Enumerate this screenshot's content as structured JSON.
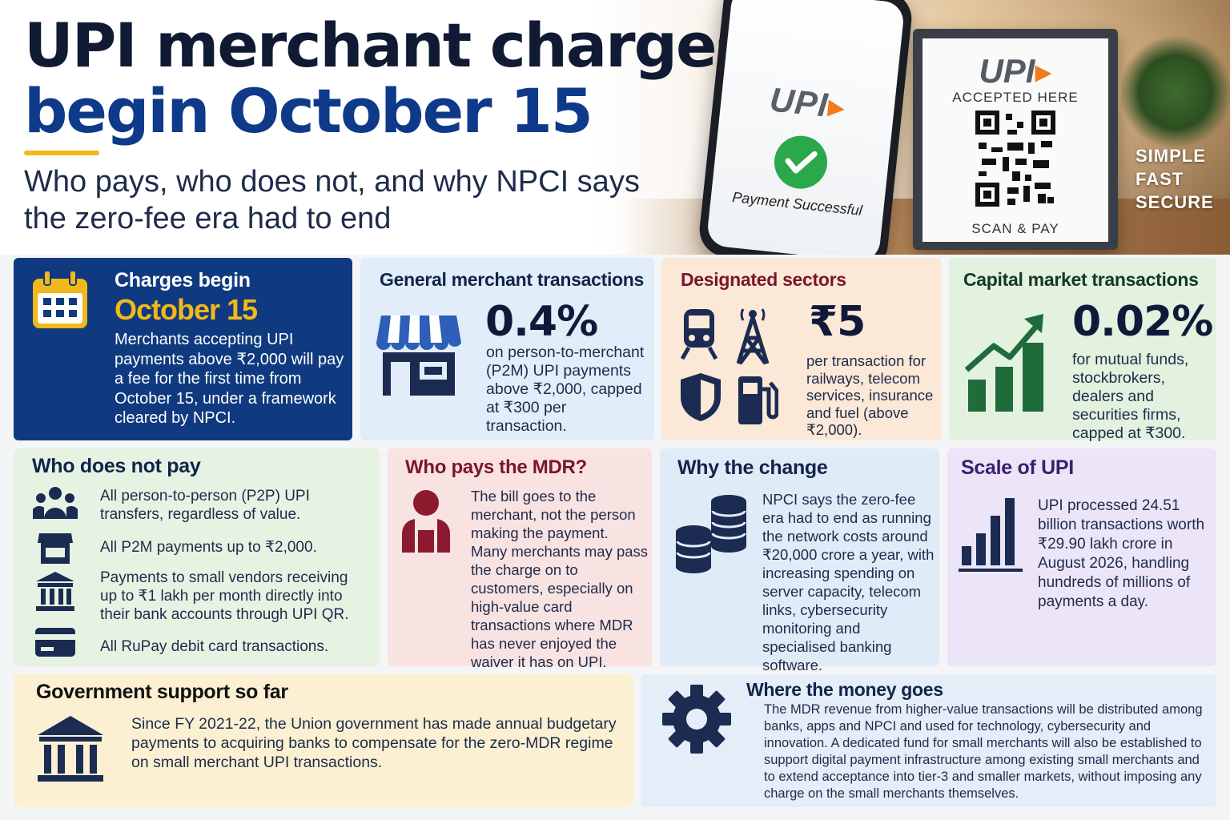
{
  "header": {
    "title_line1": "UPI merchant charges",
    "title_line2": "begin October 15",
    "subtitle": "Who pays, who does not, and why NPCI says the zero-fee era had to end"
  },
  "hero": {
    "phone_brand": "UPI",
    "phone_status": "Payment Successful",
    "stand_brand": "UPI",
    "stand_accepted": "ACCEPTED HERE",
    "stand_scan": "SCAN & PAY",
    "slogan": [
      "SIMPLE",
      "FAST",
      "SECURE"
    ]
  },
  "charges_begin": {
    "label": "Charges begin",
    "date": "October 15",
    "text": "Merchants accepting UPI payments above ₹2,000 will pay a fee for the first time from October 15, under a framework cleared by NPCI."
  },
  "general_merchant": {
    "heading": "General merchant transactions",
    "value": "0.4%",
    "text": "on person-to-merchant (P2M) UPI payments above ₹2,000, capped at ₹300 per transaction."
  },
  "designated_sectors": {
    "heading": "Designated sectors",
    "value": "₹5",
    "text": "per transaction for railways, telecom services, insurance and fuel (above ₹2,000)."
  },
  "capital_market": {
    "heading": "Capital market transactions",
    "value": "0.02%",
    "text": "for mutual funds, stockbrokers, dealers and securities firms, capped at ₹300."
  },
  "who_does_not_pay": {
    "heading": "Who does not pay",
    "items": [
      "All person-to-person (P2P) UPI transfers, regardless of value.",
      "All P2M payments up to ₹2,000.",
      "Payments to small vendors receiving up to ₹1 lakh per month directly into their bank accounts through UPI QR.",
      "All RuPay debit card transactions."
    ]
  },
  "who_pays": {
    "heading": "Who pays the MDR?",
    "text": "The bill goes to the merchant, not the person making the payment. Many merchants may pass the charge on to customers, especially on high-value card transactions where MDR has never enjoyed the waiver it has on UPI."
  },
  "why_change": {
    "heading": "Why the change",
    "text": "NPCI says the zero-fee era had to end as running the network costs around ₹20,000 crore a year, with increasing spending on server capacity, telecom links, cybersecurity monitoring and specialised banking software."
  },
  "scale": {
    "heading": "Scale of UPI",
    "text": "UPI processed 24.51 billion transactions worth ₹29.90 lakh crore in August 2026, handling hundreds of millions of payments a day."
  },
  "government": {
    "heading": "Government support so far",
    "text": "Since FY 2021-22, the Union government has made annual budgetary payments to acquiring banks to compensate for the zero-MDR regime on small merchant UPI transactions."
  },
  "money_goes": {
    "heading": "Where the money goes",
    "text": "The MDR revenue from higher-value transactions will be distributed among banks, apps and NPCI and used for technology, cybersecurity and innovation. A dedicated fund for small merchants will also be established to support digital payment infrastructure among existing small merchants and to extend acceptance into tier-3 and smaller markets, without imposing any charge on the small merchants themselves."
  },
  "colors": {
    "navy": "#0f3a7f",
    "accent_yellow": "#f2b81a",
    "upi_orange": "#f07c19",
    "success_green": "#2aa84a",
    "maroon": "#8b1a2e",
    "chart_green": "#1f6b3a",
    "purple": "#3b1f6e"
  },
  "icons": [
    "calendar-icon",
    "storefront-icon",
    "train-icon",
    "tower-icon",
    "shield-icon",
    "fuel-pump-icon",
    "growth-chart-icon",
    "people-icon",
    "shop-icon",
    "bank-icon",
    "card-icon",
    "merchant-icon",
    "coins-icon",
    "bar-chart-icon",
    "government-building-icon",
    "gear-icon",
    "checkmark-icon",
    "qr-code-icon"
  ]
}
